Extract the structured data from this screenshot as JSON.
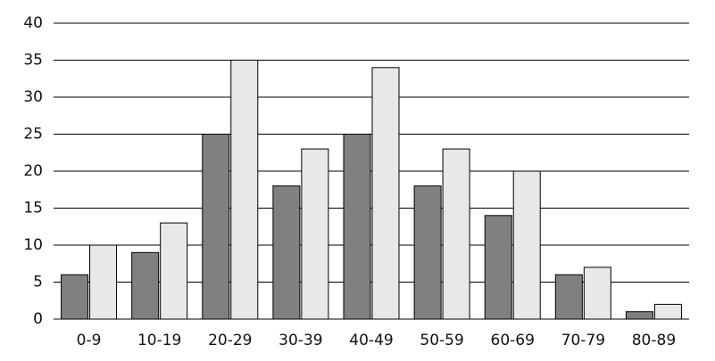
{
  "chart_data": {
    "type": "grouped-bar",
    "categories": [
      "0-9",
      "10-19",
      "20-29",
      "30-39",
      "40-49",
      "50-59",
      "60-69",
      "70-79",
      "80-89"
    ],
    "series": [
      {
        "color": "#808080",
        "values": [
          6,
          9,
          25,
          18,
          25,
          18,
          14,
          6,
          1
        ]
      },
      {
        "color": "#e8e8e8",
        "values": [
          10,
          13,
          35,
          23,
          34,
          23,
          20,
          7,
          2
        ]
      }
    ],
    "ylim": [
      0,
      40
    ],
    "yticks": [
      0,
      5,
      10,
      15,
      20,
      25,
      30,
      35,
      40
    ],
    "grid": true
  }
}
